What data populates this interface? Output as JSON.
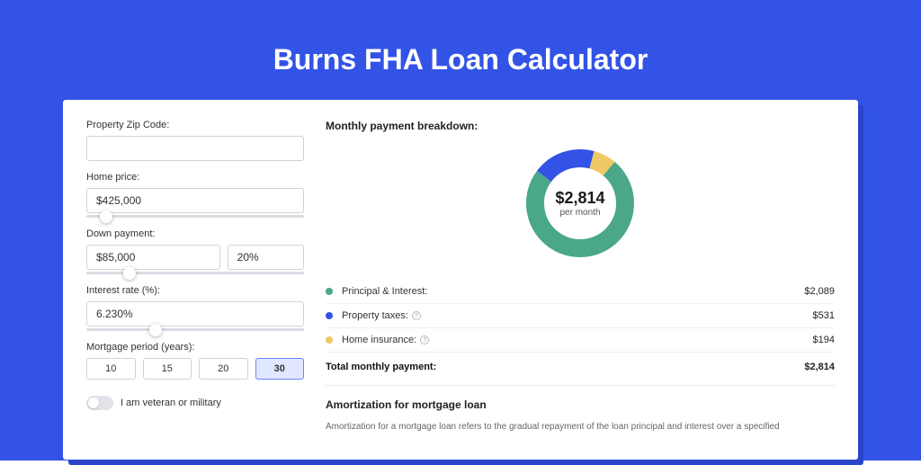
{
  "colors": {
    "outer_bg": "#3353e6",
    "panel_shadow": "#2a45c9",
    "panel_bg": "#ffffff",
    "title_color": "#ffffff",
    "active_bg": "#e1e7ff",
    "active_border": "#6b84ff",
    "series": {
      "principal": "#4aa789",
      "taxes": "#3353e6",
      "insurance": "#f0c864"
    }
  },
  "page_title": "Burns FHA Loan Calculator",
  "form": {
    "zip": {
      "label": "Property Zip Code:",
      "value": ""
    },
    "home_price": {
      "label": "Home price:",
      "value": "$425,000",
      "slider_pos": 9
    },
    "down_payment": {
      "label": "Down payment:",
      "value": "$85,000",
      "pct": "20%",
      "slider_pos": 20
    },
    "interest": {
      "label": "Interest rate (%):",
      "value": "6.230%",
      "slider_pos": 32
    },
    "period": {
      "label": "Mortgage period (years):",
      "options": [
        "10",
        "15",
        "20",
        "30"
      ],
      "active": "30"
    },
    "veteran": {
      "label": "I am veteran or military",
      "checked": false
    }
  },
  "breakdown": {
    "title": "Monthly payment breakdown:",
    "center_value": "$2,814",
    "center_sub": "per month",
    "donut": {
      "segments": [
        {
          "key": "principal",
          "pct": 74.2,
          "color": "#4aa789"
        },
        {
          "key": "taxes",
          "pct": 18.9,
          "color": "#3353e6"
        },
        {
          "key": "insurance",
          "pct": 6.9,
          "color": "#f0c864"
        }
      ],
      "bg": "#ffffff",
      "stroke_width": 20
    },
    "lines": [
      {
        "dot": "#4aa789",
        "label": "Principal & Interest:",
        "info": false,
        "value": "$2,089"
      },
      {
        "dot": "#3353e6",
        "label": "Property taxes:",
        "info": true,
        "value": "$531"
      },
      {
        "dot": "#f0c864",
        "label": "Home insurance:",
        "info": true,
        "value": "$194"
      }
    ],
    "total_label": "Total monthly payment:",
    "total_value": "$2,814"
  },
  "amortization": {
    "title": "Amortization for mortgage loan",
    "text": "Amortization for a mortgage loan refers to the gradual repayment of the loan principal and interest over a specified"
  }
}
